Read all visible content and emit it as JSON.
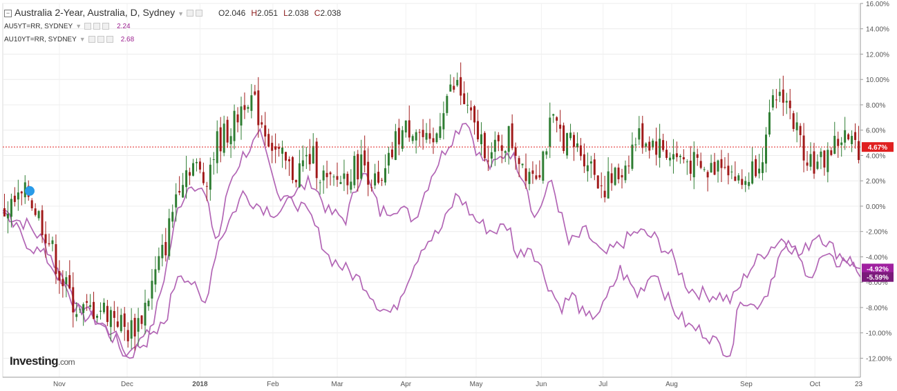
{
  "legend": {
    "main_title": "Australia 2-Year, Australia, D, Sydney",
    "open_label": "O",
    "open": "2.046",
    "high_label": "H",
    "high": "2.051",
    "low_label": "L",
    "low": "2.038",
    "close_label": "C",
    "close": "2.038",
    "series1": "AU5YT=RR, SYDNEY",
    "series1_value": "2.24",
    "series2": "AU10YT=RR, SYDNEY",
    "series2_value": "2.68"
  },
  "logo": {
    "brand": "Investing",
    "suffix": ".com"
  },
  "colors": {
    "up": "#2e7d32",
    "down": "#a11a1a",
    "line": "#b265b5",
    "main_badge": "#e02020",
    "badge1": "#a020a0",
    "badge2": "#7a1a7a"
  },
  "chart_data": {
    "type": "line",
    "y_unit": "%",
    "y_range": [
      -13.5,
      16
    ],
    "y_ticks": [
      16,
      14,
      12,
      10,
      8,
      6,
      4,
      2,
      0,
      -2,
      -4,
      -6,
      -8,
      -10,
      -12
    ],
    "y_tick_labels": [
      "16.00%",
      "14.00%",
      "12.00%",
      "10.00%",
      "8.00%",
      "6.00%",
      "4.00%",
      "2.00%",
      "0.00%",
      "-2.00%",
      "-4.00%",
      "-6.00%",
      "-8.00%",
      "-10.00%",
      "-12.00%"
    ],
    "x_labels": [
      "Nov",
      "Dec",
      "2018",
      "Feb",
      "Mar",
      "Apr",
      "May",
      "Jun",
      "Jul",
      "Aug",
      "Sep",
      "Oct",
      "23"
    ],
    "x_label_pos": [
      0.066,
      0.145,
      0.23,
      0.315,
      0.39,
      0.47,
      0.552,
      0.628,
      0.7,
      0.78,
      0.867,
      0.947,
      0.998
    ],
    "grid": true,
    "current_labels": [
      {
        "value": 4.67,
        "label": "4.67%",
        "color_key": "main_badge"
      },
      {
        "value": -4.92,
        "label": "-4.92%",
        "color_key": "badge1"
      },
      {
        "value": -5.59,
        "label": "-5.59%",
        "color_key": "badge2"
      }
    ],
    "series": [
      {
        "name": "Australia 2-Year",
        "kind": "candlestick",
        "anchors": [
          [
            0,
            -0.5
          ],
          [
            0.03,
            1
          ],
          [
            0.05,
            -2
          ],
          [
            0.07,
            -6
          ],
          [
            0.09,
            -8.5
          ],
          [
            0.11,
            -8
          ],
          [
            0.13,
            -8.5
          ],
          [
            0.145,
            -10
          ],
          [
            0.16,
            -9
          ],
          [
            0.175,
            -6
          ],
          [
            0.19,
            -3
          ],
          [
            0.205,
            2
          ],
          [
            0.22,
            3.5
          ],
          [
            0.235,
            2
          ],
          [
            0.25,
            5
          ],
          [
            0.27,
            6.5
          ],
          [
            0.285,
            9
          ],
          [
            0.3,
            7
          ],
          [
            0.32,
            4
          ],
          [
            0.34,
            2.5
          ],
          [
            0.36,
            4
          ],
          [
            0.38,
            1.5
          ],
          [
            0.4,
            2.5
          ],
          [
            0.42,
            3.5
          ],
          [
            0.44,
            1
          ],
          [
            0.46,
            5.5
          ],
          [
            0.48,
            6.5
          ],
          [
            0.5,
            4
          ],
          [
            0.515,
            8.5
          ],
          [
            0.53,
            9.5
          ],
          [
            0.55,
            6
          ],
          [
            0.57,
            4
          ],
          [
            0.59,
            5.5
          ],
          [
            0.61,
            3
          ],
          [
            0.625,
            3
          ],
          [
            0.64,
            6.5
          ],
          [
            0.66,
            5
          ],
          [
            0.68,
            4
          ],
          [
            0.7,
            1.5
          ],
          [
            0.72,
            2.5
          ],
          [
            0.74,
            5.5
          ],
          [
            0.76,
            5
          ],
          [
            0.78,
            4
          ],
          [
            0.8,
            3.5
          ],
          [
            0.82,
            2.5
          ],
          [
            0.84,
            4
          ],
          [
            0.86,
            1.5
          ],
          [
            0.875,
            3
          ],
          [
            0.89,
            5
          ],
          [
            0.9,
            8.5
          ],
          [
            0.91,
            9
          ],
          [
            0.93,
            5
          ],
          [
            0.95,
            3
          ],
          [
            0.965,
            4.5
          ],
          [
            0.98,
            5.5
          ],
          [
            0.99,
            4.8
          ],
          [
            1.0,
            4.67
          ]
        ]
      },
      {
        "name": "AU5YT=RR, SYDNEY",
        "anchors": [
          [
            0,
            -0.5
          ],
          [
            0.03,
            -1.5
          ],
          [
            0.05,
            -3
          ],
          [
            0.07,
            -6
          ],
          [
            0.09,
            -8.5
          ],
          [
            0.11,
            -9
          ],
          [
            0.13,
            -10.5
          ],
          [
            0.145,
            -12
          ],
          [
            0.16,
            -11
          ],
          [
            0.17,
            -10.5
          ],
          [
            0.18,
            -8
          ],
          [
            0.19,
            -5
          ],
          [
            0.205,
            0
          ],
          [
            0.22,
            2
          ],
          [
            0.235,
            1
          ],
          [
            0.25,
            -3
          ],
          [
            0.265,
            2
          ],
          [
            0.28,
            4
          ],
          [
            0.3,
            5.5
          ],
          [
            0.32,
            1
          ],
          [
            0.34,
            1
          ],
          [
            0.36,
            2
          ],
          [
            0.38,
            -0.5
          ],
          [
            0.4,
            -1
          ],
          [
            0.42,
            3
          ],
          [
            0.44,
            -0.5
          ],
          [
            0.46,
            0
          ],
          [
            0.48,
            -1
          ],
          [
            0.5,
            2.5
          ],
          [
            0.52,
            5
          ],
          [
            0.54,
            7
          ],
          [
            0.555,
            4
          ],
          [
            0.57,
            3
          ],
          [
            0.59,
            4.5
          ],
          [
            0.61,
            2
          ],
          [
            0.62,
            -1
          ],
          [
            0.64,
            2
          ],
          [
            0.66,
            -3
          ],
          [
            0.68,
            -2
          ],
          [
            0.7,
            -4
          ],
          [
            0.72,
            -3
          ],
          [
            0.74,
            -2
          ],
          [
            0.76,
            -2.5
          ],
          [
            0.78,
            -4
          ],
          [
            0.8,
            -6.5
          ],
          [
            0.82,
            -7
          ],
          [
            0.835,
            -7
          ],
          [
            0.85,
            -7.5
          ],
          [
            0.87,
            -5
          ],
          [
            0.89,
            -3.5
          ],
          [
            0.91,
            -2.5
          ],
          [
            0.93,
            -4
          ],
          [
            0.95,
            -2
          ],
          [
            0.97,
            -3.5
          ],
          [
            0.99,
            -4.5
          ],
          [
            1.0,
            -5.59
          ]
        ]
      },
      {
        "name": "AU10YT=RR, SYDNEY",
        "anchors": [
          [
            0,
            -0.5
          ],
          [
            0.03,
            -3
          ],
          [
            0.05,
            -4
          ],
          [
            0.07,
            -6
          ],
          [
            0.09,
            -8
          ],
          [
            0.11,
            -9
          ],
          [
            0.13,
            -10
          ],
          [
            0.145,
            -12
          ],
          [
            0.16,
            -10
          ],
          [
            0.175,
            -10.5
          ],
          [
            0.19,
            -9
          ],
          [
            0.205,
            -5
          ],
          [
            0.22,
            -6
          ],
          [
            0.235,
            -8
          ],
          [
            0.25,
            -3
          ],
          [
            0.265,
            -1
          ],
          [
            0.28,
            1
          ],
          [
            0.3,
            0
          ],
          [
            0.32,
            -0.5
          ],
          [
            0.34,
            0.5
          ],
          [
            0.36,
            -1
          ],
          [
            0.38,
            -4
          ],
          [
            0.4,
            -5
          ],
          [
            0.42,
            -6
          ],
          [
            0.44,
            -8
          ],
          [
            0.455,
            -8.5
          ],
          [
            0.47,
            -6
          ],
          [
            0.49,
            -3
          ],
          [
            0.51,
            -2
          ],
          [
            0.53,
            1
          ],
          [
            0.55,
            -1
          ],
          [
            0.57,
            -2
          ],
          [
            0.59,
            -1.5
          ],
          [
            0.6,
            -4
          ],
          [
            0.615,
            -3
          ],
          [
            0.635,
            -6
          ],
          [
            0.65,
            -8
          ],
          [
            0.665,
            -7
          ],
          [
            0.68,
            -9
          ],
          [
            0.7,
            -8
          ],
          [
            0.72,
            -5
          ],
          [
            0.74,
            -7
          ],
          [
            0.76,
            -5
          ],
          [
            0.78,
            -8
          ],
          [
            0.8,
            -9.5
          ],
          [
            0.82,
            -10
          ],
          [
            0.835,
            -11
          ],
          [
            0.85,
            -11.5
          ],
          [
            0.86,
            -7
          ],
          [
            0.875,
            -8
          ],
          [
            0.89,
            -7
          ],
          [
            0.905,
            -4
          ],
          [
            0.92,
            -3
          ],
          [
            0.93,
            -4.5
          ],
          [
            0.945,
            -5.5
          ],
          [
            0.955,
            -4
          ],
          [
            0.97,
            -4.5
          ],
          [
            0.985,
            -4.2
          ],
          [
            1.0,
            -4.92
          ]
        ]
      }
    ]
  }
}
